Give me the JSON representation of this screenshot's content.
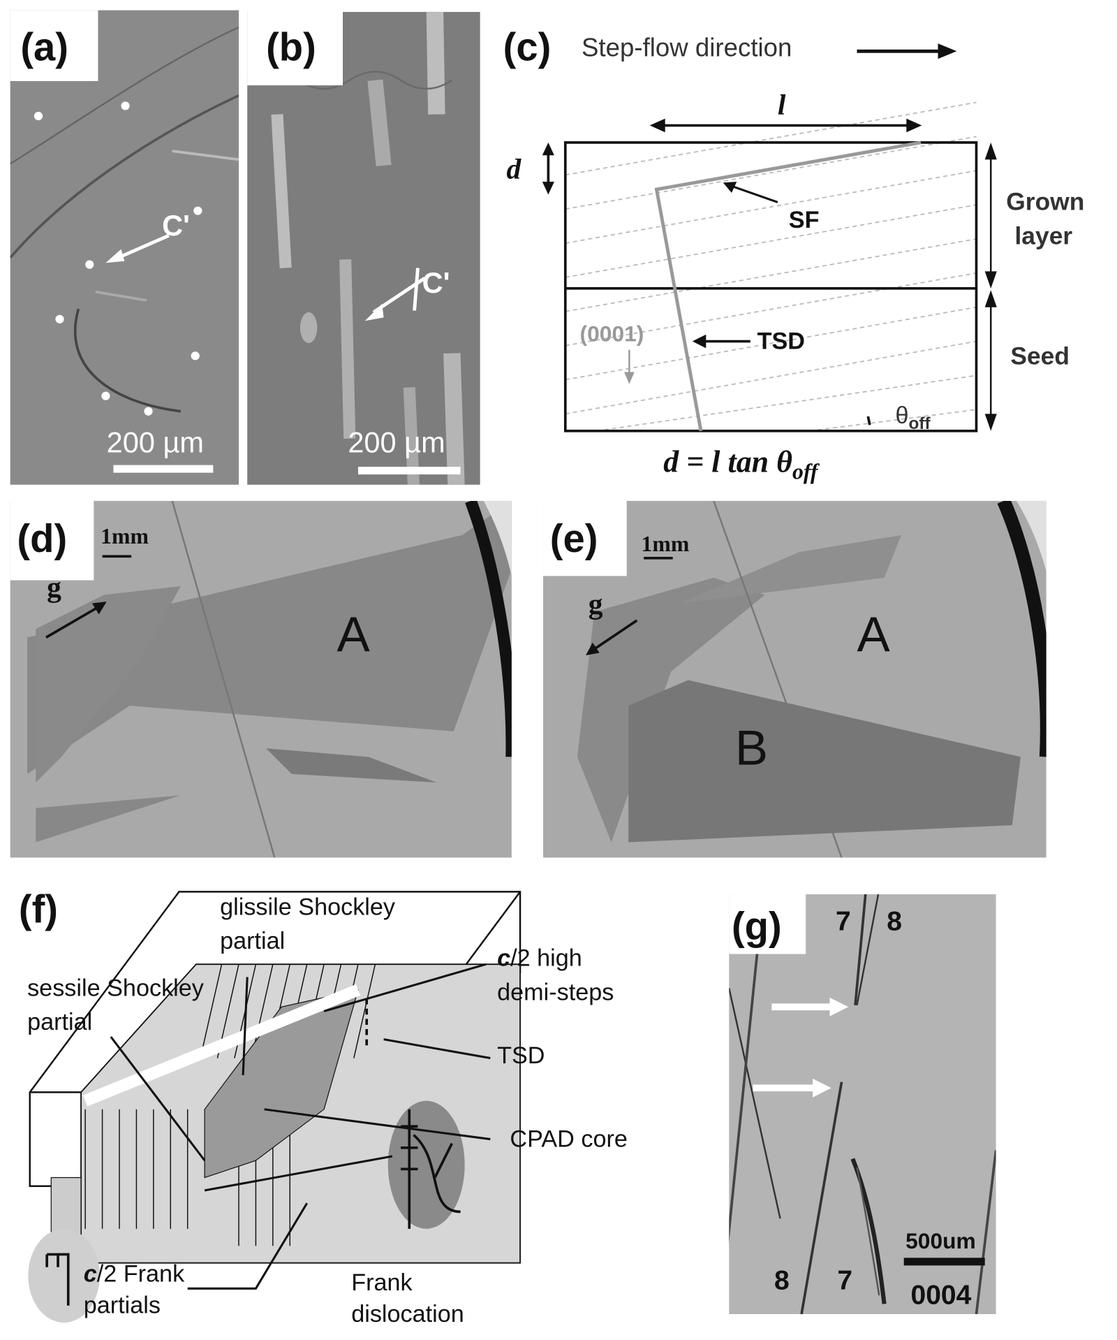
{
  "panels": {
    "a": {
      "label": "(a)",
      "marker": "C'",
      "scale_bar": "200 µm"
    },
    "b": {
      "label": "(b)",
      "marker": "C'",
      "scale_bar": "200 µm"
    },
    "c": {
      "label": "(c)",
      "direction": "Step-flow direction",
      "l": "l",
      "d": "d",
      "sf": "SF",
      "tsd": "TSD",
      "plane": "(0001)",
      "grown_layer": [
        "Grown",
        "layer"
      ],
      "seed": "Seed",
      "theta": "θ",
      "theta_sub": "off",
      "formula": "d = l tan θ",
      "formula_sub": "off"
    },
    "d": {
      "label": "(d)",
      "scale_bar": "1mm",
      "g": "g",
      "region_a": "A"
    },
    "e": {
      "label": "(e)",
      "scale_bar": "1mm",
      "g": "g",
      "region_a": "A",
      "region_b": "B"
    },
    "f": {
      "label": "(f)",
      "glissile": [
        "glissile Shockley",
        "partial"
      ],
      "sessile": [
        "sessile Shockley",
        "partial"
      ],
      "demi_steps_c": "c",
      "demi_steps": [
        "/2 high",
        "demi-steps"
      ],
      "tsd": "TSD",
      "cpad": "CPAD core",
      "frank_partials_c": "c",
      "frank_partials": [
        "/2 Frank",
        "partials"
      ],
      "frank_dislocation": [
        "Frank",
        "dislocation"
      ]
    },
    "g": {
      "label": "(g)",
      "top_numbers": [
        "7",
        "8"
      ],
      "bottom_numbers": [
        "8",
        "7"
      ],
      "scale_bar": "500um",
      "reflection": "0004"
    }
  }
}
